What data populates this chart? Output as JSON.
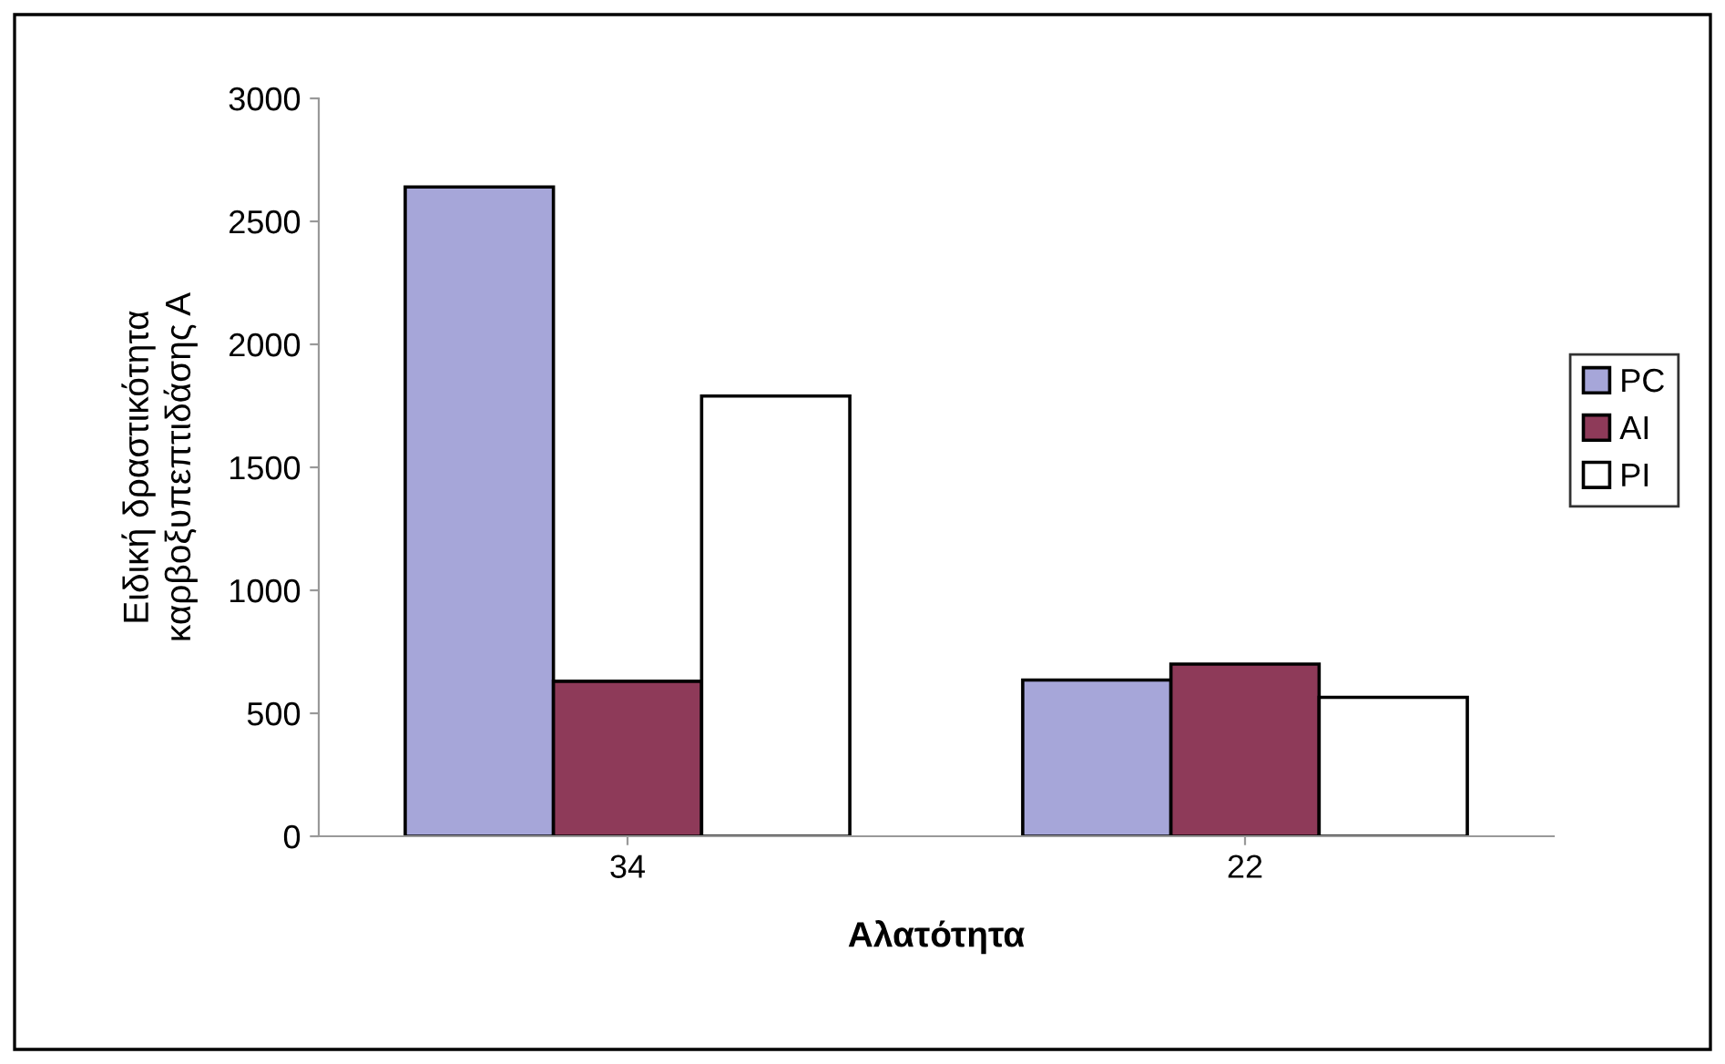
{
  "chart_data": {
    "type": "bar",
    "xlabel": "Αλατότητα",
    "ylabel": "Ειδική δραστικότητα\nκαρβοξυπεπτιδάσης Α",
    "categories": [
      "34",
      "22"
    ],
    "series": [
      {
        "name": "PC",
        "color": "#a6a6d9",
        "values": [
          2640,
          635
        ]
      },
      {
        "name": "AI",
        "color": "#8e3a59",
        "values": [
          630,
          700
        ]
      },
      {
        "name": "PI",
        "color": "#ffffff",
        "values": [
          1790,
          565
        ]
      }
    ],
    "ylim": [
      0,
      3000
    ],
    "yticks": [
      0,
      500,
      1000,
      1500,
      2000,
      2500,
      3000
    ],
    "grid": false,
    "legend": "right"
  }
}
